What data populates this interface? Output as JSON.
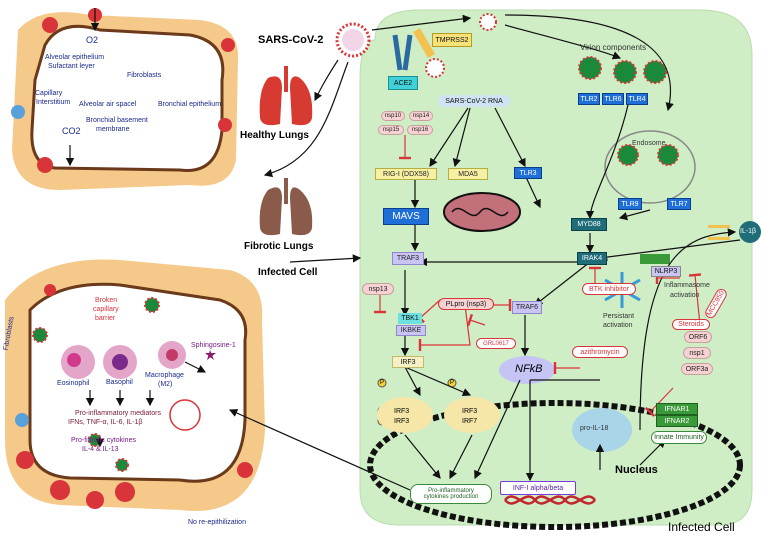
{
  "virus": "SARS-CoV-2",
  "receptors": {
    "ace2": "ACE2",
    "tmprss2": "TMPRSS2"
  },
  "virion_components": "Virion components",
  "tlr_surface": [
    "TLR2",
    "TLR6",
    "TLR4"
  ],
  "endosome": {
    "label": "Endosome",
    "tlrs": [
      "TLR9",
      "TLR7"
    ]
  },
  "rna": "SARS-CoV-2 RNA",
  "nsps": [
    "nsp10",
    "nsp14",
    "nsp15",
    "nsp16"
  ],
  "sensors": {
    "rigi": "RIG-I (DDX58)",
    "mda5": "MDA5",
    "tlr3": "TLR3"
  },
  "adaptors": {
    "mavs": "MAVS",
    "myd88": "MYD88",
    "traf3": "TRAF3",
    "irak4": "IRAK4",
    "tbk1": "TBK1",
    "ikbke": "IKBKE",
    "traf6": "TRAF6",
    "irf3": "IRF3",
    "nfkb": "NFkB"
  },
  "nsp13": "nsp13",
  "plpro": "PLpro (nsp3)",
  "inhibitors": {
    "btk": "BTK inhibitor",
    "grl": "GRL0617",
    "azithro": "azithromycin",
    "steroids": "Steroids",
    "mcc950": "MCC950"
  },
  "il1b": "IL-1β",
  "nlrp3": "NLRP3",
  "inflammasome": [
    "Inflammasome",
    "activation"
  ],
  "persistant": [
    "Persistant",
    "activation"
  ],
  "orf": [
    "ORF6",
    "nsp1",
    "ORF3a"
  ],
  "ifnar": [
    "IFNAR1",
    "IFNAR2"
  ],
  "innate": "Innate Immunity",
  "pro_il18": "pro-IL-18",
  "phospho": "P",
  "dimers": [
    [
      "IRF3",
      "IRF3"
    ],
    [
      "IRF3",
      "IRF7"
    ]
  ],
  "nucleus": "Nucleus",
  "pro_inflam_box": [
    "Pro-inflammatory",
    "cytokines production"
  ],
  "inf_box": "INF-I alpha/beta",
  "infected_cell_bottom": "Infected Cell",
  "infected_cell_mid": "Infected Cell",
  "healthy_lungs": "Healthy Lungs",
  "fibrotic_lungs": "Fibrotic Lungs",
  "alveolus_top": {
    "o2": "O2",
    "co2": "CO2",
    "alveolar_epithelium": [
      "Alveolar epithelium",
      "Sufactant leyer"
    ],
    "fibroblasts": "Fibroblasts",
    "capillary": [
      "Capillary",
      "Interstitium"
    ],
    "air_space": "Alveolar air spacel",
    "bronchial_epithelium": "Bronchial epithelium",
    "bronchial_basement": [
      "Bronchial basement",
      "membrane"
    ]
  },
  "alveolus_bottom": {
    "fibroblasts": "Fibroblasts",
    "broken": [
      "Broken",
      "capillary",
      "barrier"
    ],
    "eosinophil": "Eosinophil",
    "basophil": "Basophil",
    "macrophage": [
      "Macrophage",
      "(M2)"
    ],
    "sphingosine": "Sphingosine-1",
    "mediators": [
      "Pro-inflammatory mediators",
      "IFNs, TNF-α, IL-6, IL-1β"
    ],
    "fibrotic": [
      "Pro-fibrotic cytokines",
      "IL-4 & IL-13"
    ],
    "no_reepi": "No re-epithilization"
  }
}
